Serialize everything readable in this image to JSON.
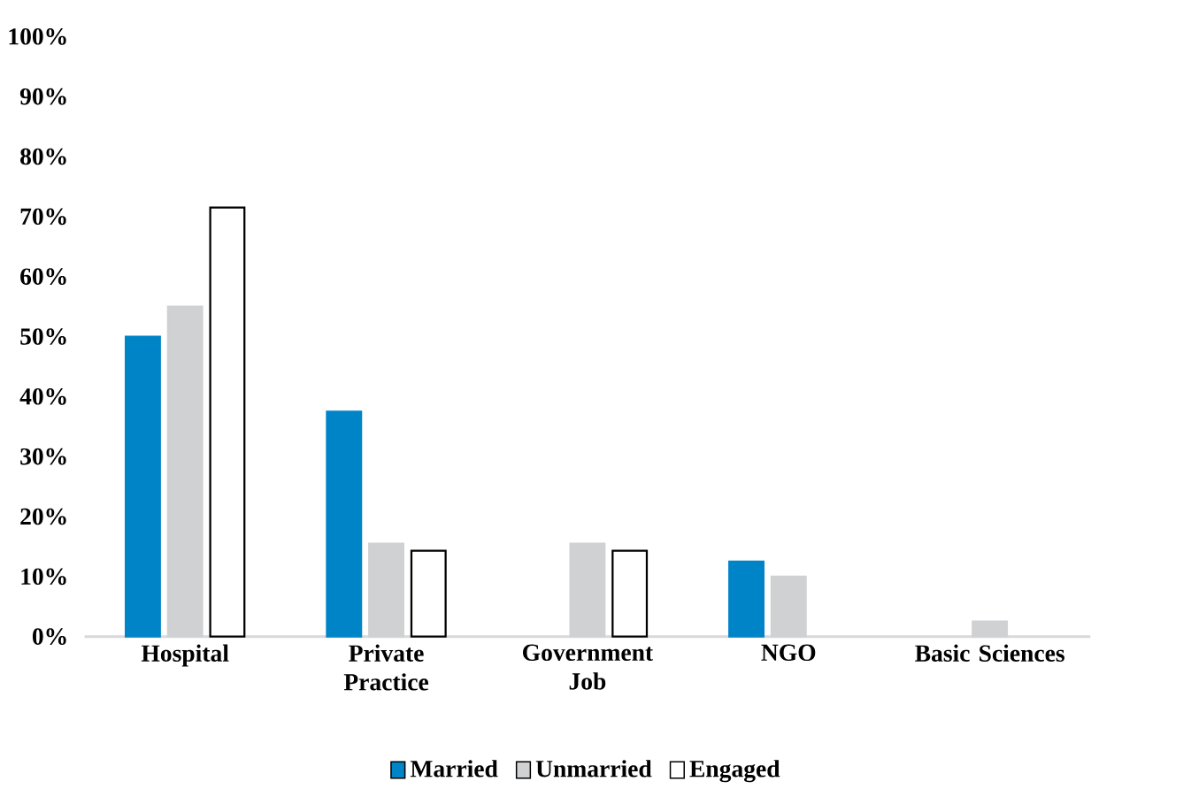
{
  "chart_data": {
    "type": "bar",
    "categories": [
      "Hospital",
      "Private Practice",
      "Government Job",
      "NGO",
      "Basic Sciences"
    ],
    "series": [
      {
        "name": "Married",
        "color": "#0084c8",
        "values": [
          50,
          37.5,
          null,
          12.5,
          null
        ]
      },
      {
        "name": "Unmarried",
        "color": "#d0d1d3",
        "values": [
          55,
          15.5,
          15.5,
          10,
          2.5
        ]
      },
      {
        "name": "Engaged",
        "color": "#ffffff",
        "values": [
          71.5,
          14.3,
          14.3,
          null,
          null
        ]
      }
    ],
    "ylim": [
      0,
      100
    ],
    "yticks": [
      {
        "value": 0,
        "label": "0%"
      },
      {
        "value": 10,
        "label": "10%"
      },
      {
        "value": 20,
        "label": "20%"
      },
      {
        "value": 30,
        "label": "30%"
      },
      {
        "value": 40,
        "label": "40%"
      },
      {
        "value": 50,
        "label": "50%"
      },
      {
        "value": 60,
        "label": "60%"
      },
      {
        "value": 70,
        "label": "70%"
      },
      {
        "value": 80,
        "label": "80%"
      },
      {
        "value": 90,
        "label": "90%"
      },
      {
        "value": 100,
        "label": "100%"
      }
    ],
    "grid": false,
    "legend": "bottom"
  }
}
